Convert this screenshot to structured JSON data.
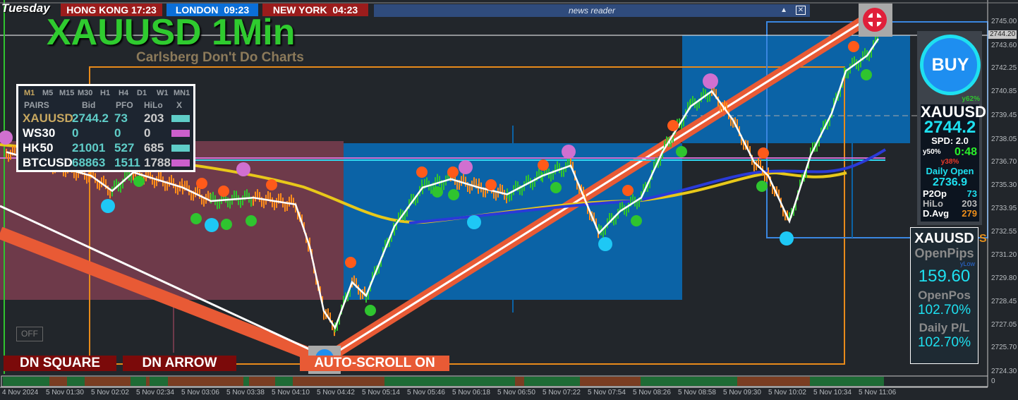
{
  "header": {
    "day": "Tuesday",
    "clocks": [
      {
        "city": "HONG KONG",
        "time": "17:23",
        "color": "#9b1c1c"
      },
      {
        "city": "LONDON",
        "time": "09:23",
        "color": "#0b6fd8"
      },
      {
        "city": "NEW YORK",
        "time": "04:23",
        "color": "#9b1c1c"
      }
    ],
    "news_reader": {
      "label": "news reader",
      "collapse_icon": "triangle-up-icon",
      "close_icon": "close-box-icon"
    }
  },
  "chart_title": "XAUUSD 1Min",
  "chart_subtitle": "Carlsberg Don't Do Charts",
  "pairs_table": {
    "timeframes": [
      "M1",
      "M5",
      "M15",
      "M30",
      "H1",
      "H4",
      "D1",
      "W1",
      "MN1"
    ],
    "active_timeframe": "M1",
    "headers": [
      "PAIRS",
      "Bid",
      "PFO",
      "HiLo",
      "X"
    ],
    "rows": [
      {
        "pair": "XAUUSD",
        "bid": "2744.2",
        "pfo": "73",
        "hilo": "203",
        "color": "#5fcdc8"
      },
      {
        "pair": "WS30",
        "bid": "0",
        "pfo": "0",
        "hilo": "0",
        "color": "#cc5fcc"
      },
      {
        "pair": "HK50",
        "bid": "21001",
        "pfo": "527",
        "hilo": "685",
        "color": "#5fcdc8"
      },
      {
        "pair": "BTCUSD",
        "bid": "68863",
        "pfo": "1511",
        "hilo": "1788",
        "color": "#cc5fcc"
      }
    ]
  },
  "buttons": {
    "dn_square": "DN SQUARE",
    "dn_arrow": "DN ARROW",
    "auto_scroll": "AUTO-SCROLL ON",
    "off": "OFF"
  },
  "info_panel": {
    "signal": "BUY",
    "y_pct_1": "y62%",
    "symbol": "XAUUSD",
    "price": "2744.2",
    "y_pct_2": "y50%",
    "spread": "SPD: 2.0",
    "timer": "0:48",
    "y_pct_3": "y38%",
    "daily_open_label": "Daily Open",
    "daily_open": "2736.9",
    "p2op_label": "P2Op",
    "p2op": "73",
    "hilo_label": "HiLo",
    "hilo": "203",
    "davg_label": "D.Avg",
    "davg": "279"
  },
  "position_panel": {
    "symbol": "XAUUSD",
    "open_pips_label": "OpenPips",
    "open_pips": "159.60",
    "ylow": "yLow",
    "open_pos_label": "OpenPos",
    "open_pos": "102.70%",
    "daily_pl_label": "Daily P/L",
    "daily_pl": "102.70%"
  },
  "price_axis": {
    "labels": [
      "2745.00",
      "2743.60",
      "2742.25",
      "2740.85",
      "2739.45",
      "2738.05",
      "2736.70",
      "2735.30",
      "2733.95",
      "2732.55",
      "2731.20",
      "2729.80",
      "2728.45",
      "2727.05",
      "2725.70",
      "2724.30"
    ],
    "current": "2744.20",
    "indicator_zero": "0"
  },
  "time_axis": {
    "labels": [
      "4 Nov 2024",
      "5 Nov 01:30",
      "5 Nov 02:02",
      "5 Nov 02:34",
      "5 Nov 03:06",
      "5 Nov 03:38",
      "5 Nov 04:10",
      "5 Nov 04:42",
      "5 Nov 05:14",
      "5 Nov 05:46",
      "5 Nov 06:18",
      "5 Nov 06:50",
      "5 Nov 07:22",
      "5 Nov 07:54",
      "5 Nov 08:26",
      "5 Nov 08:58",
      "5 Nov 09:30",
      "5 Nov 10:02",
      "5 Nov 10:34",
      "5 Nov 11:06"
    ]
  },
  "chart_data": {
    "type": "line",
    "symbol": "XAUUSD",
    "timeframe": "M1",
    "ylim": [
      2724.3,
      2745.0
    ],
    "price_path": [
      [
        "01:01",
        2737.3
      ],
      [
        "02:01",
        2735.9
      ],
      [
        "02:16",
        2735.0
      ],
      [
        "02:31",
        2736.1
      ],
      [
        "03:06",
        2735.2
      ],
      [
        "03:26",
        2734.4
      ],
      [
        "03:56",
        2734.6
      ],
      [
        "04:26",
        2734.2
      ],
      [
        "04:36",
        2731.7
      ],
      [
        "04:46",
        2727.9
      ],
      [
        "04:54",
        2726.9
      ],
      [
        "05:06",
        2729.6
      ],
      [
        "05:16",
        2728.8
      ],
      [
        "05:36",
        2732.9
      ],
      [
        "05:56",
        2735.2
      ],
      [
        "06:16",
        2735.7
      ],
      [
        "06:36",
        2735.2
      ],
      [
        "06:56",
        2734.8
      ],
      [
        "07:21",
        2735.9
      ],
      [
        "07:41",
        2736.5
      ],
      [
        "08:01",
        2732.5
      ],
      [
        "08:16",
        2733.8
      ],
      [
        "08:31",
        2734.6
      ],
      [
        "08:46",
        2737.3
      ],
      [
        "09:06",
        2740.0
      ],
      [
        "09:21",
        2740.9
      ],
      [
        "09:36",
        2739.2
      ],
      [
        "09:51",
        2736.7
      ],
      [
        "10:01",
        2735.9
      ],
      [
        "10:16",
        2733.2
      ],
      [
        "10:31",
        2737.1
      ],
      [
        "10:46",
        2739.6
      ],
      [
        "10:56",
        2742.1
      ],
      [
        "11:11",
        2743.0
      ],
      [
        "11:19",
        2744.0
      ]
    ],
    "colors": {
      "bull": "#2fc42f",
      "bear": "#ff8c1a",
      "ma_slow": "#e8c81a",
      "ma_fast": "#2a3ad8",
      "trend_band": "#e85a35"
    }
  }
}
